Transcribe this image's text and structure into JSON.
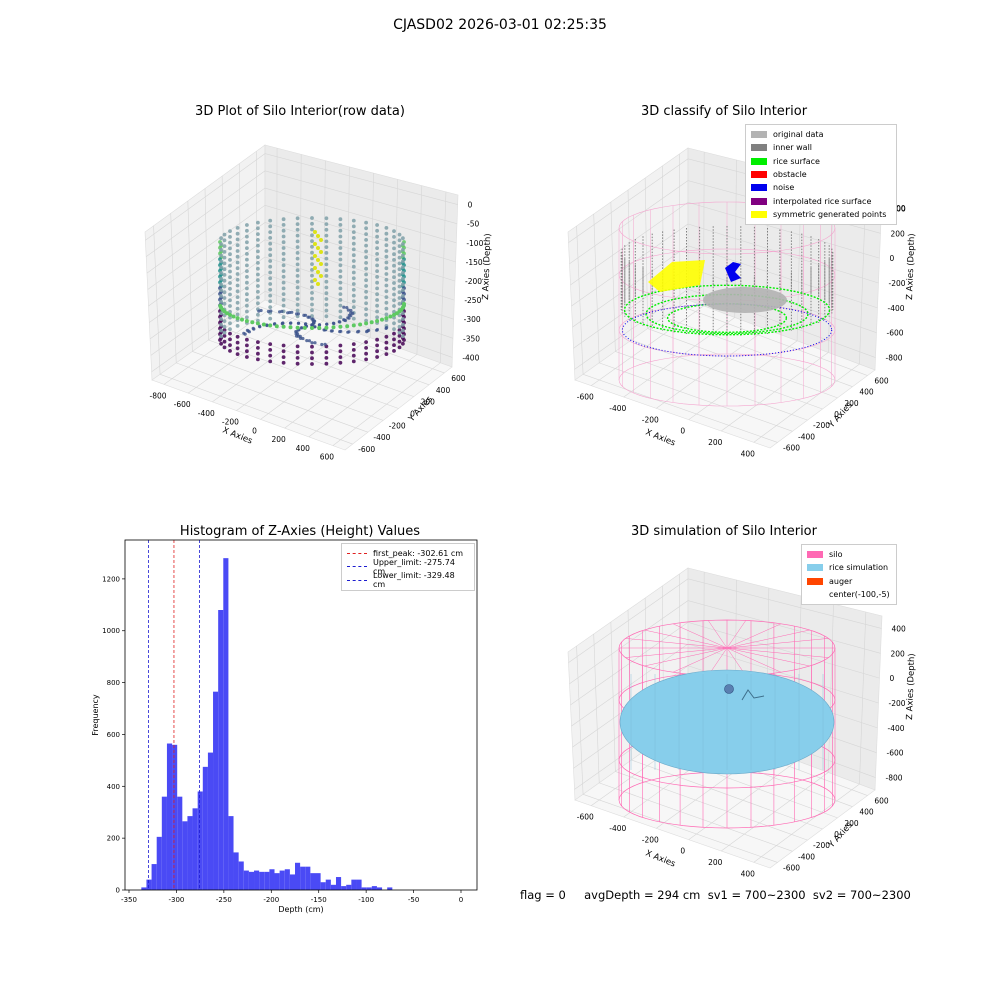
{
  "figure": {
    "suptitle": "CJASD02 2026-03-01 02:25:35",
    "status_text": "flag = 0     avgDepth = 294 cm  sv1 = 700~2300  sv2 = 700~2300"
  },
  "colors": {
    "hist_bar": "#4a4af5",
    "peak_line": "#e02020",
    "limit_line": "#1c1cd0",
    "silo": "#ff69b4",
    "rice_sim": "#87ceeb",
    "auger": "#ff4500",
    "original": "#b3b3b3",
    "inner_wall": "#808080",
    "rice_surface": "#00ee00",
    "obstacle": "#ff0000",
    "noise": "#0000ee",
    "interp_rice": "#800080",
    "symmetric": "#ffff00"
  },
  "chart_data": [
    {
      "type": "scatter",
      "projection": "3d",
      "title": "3D Plot of Silo Interior(row data)",
      "xlabel": "X Axies",
      "ylabel": "Y Axies",
      "zlabel": "Z Axies (Depth)",
      "x_ticks": [
        "-800",
        "-600",
        "-400",
        "-200",
        "0",
        "200",
        "400",
        "600"
      ],
      "y_ticks": [
        "-600",
        "-400",
        "-200",
        "0",
        "200",
        "400",
        "600"
      ],
      "z_ticks": [
        "0",
        "-50",
        "-100",
        "-150",
        "-200",
        "-250",
        "-300",
        "-350",
        "-400"
      ],
      "colormap": "viridis"
    },
    {
      "type": "scatter",
      "projection": "3d",
      "title": "3D classify of Silo Interior",
      "xlabel": "X Axies",
      "ylabel": "Y Axies",
      "zlabel": "Z Axies (Depth)",
      "x_ticks": [
        "-600",
        "-400",
        "-200",
        "0",
        "200",
        "400"
      ],
      "y_ticks": [
        "-600",
        "-400",
        "-200",
        "0",
        "200",
        "400",
        "600"
      ],
      "z_ticks": [
        "400",
        "200",
        "0",
        "-200",
        "-400",
        "-600",
        "-800"
      ],
      "z_tick_partial": "00",
      "legend": [
        {
          "label": "original data",
          "color": "#b3b3b3"
        },
        {
          "label": "inner wall",
          "color": "#808080"
        },
        {
          "label": "rice surface",
          "color": "#00ee00"
        },
        {
          "label": "obstacle",
          "color": "#ff0000"
        },
        {
          "label": "noise",
          "color": "#0000ee"
        },
        {
          "label": "interpolated rice surface",
          "color": "#800080"
        },
        {
          "label": "symmetric generated points",
          "color": "#ffff00"
        }
      ]
    },
    {
      "type": "bar",
      "title": "Histogram of Z-Axies (Height) Values",
      "xlabel": "Depth (cm)",
      "ylabel": "Frequency",
      "xlim": [
        -350,
        0
      ],
      "ylim": [
        0,
        1350
      ],
      "x_ticks": [
        -350,
        -300,
        -250,
        -200,
        -150,
        -100,
        -50,
        0
      ],
      "y_ticks": [
        0,
        200,
        400,
        600,
        800,
        1000,
        1200
      ],
      "bin_start": -337,
      "bin_width": 5.4,
      "values": [
        10,
        40,
        100,
        205,
        360,
        565,
        560,
        360,
        265,
        285,
        315,
        380,
        475,
        530,
        765,
        1080,
        1280,
        285,
        145,
        110,
        75,
        70,
        75,
        70,
        70,
        80,
        65,
        75,
        80,
        60,
        105,
        90,
        90,
        65,
        65,
        30,
        40,
        20,
        50,
        15,
        20,
        40,
        40,
        10,
        10,
        15,
        10,
        0,
        10
      ],
      "vlines": [
        {
          "label": "first_peak: -302.61 cm",
          "x": -302.61,
          "color": "#e02020"
        },
        {
          "label": "Upper_limit: -275.74 cm",
          "x": -275.74,
          "color": "#1c1cd0"
        },
        {
          "label": "Lower_limit: -329.48 cm",
          "x": -329.48,
          "color": "#1c1cd0"
        }
      ]
    },
    {
      "type": "scatter",
      "projection": "3d",
      "title": "3D simulation of Silo Interior",
      "xlabel": "X Axies",
      "ylabel": "Y Axies",
      "zlabel": "Z Axies (Depth)",
      "x_ticks": [
        "-600",
        "-400",
        "-200",
        "0",
        "200",
        "400"
      ],
      "y_ticks": [
        "-600",
        "-400",
        "-200",
        "0",
        "200",
        "400",
        "600"
      ],
      "z_ticks": [
        "400",
        "200",
        "0",
        "-200",
        "-400",
        "-600",
        "-800"
      ],
      "legend": [
        {
          "label": "silo",
          "color": "#ff69b4"
        },
        {
          "label": "rice simulation",
          "color": "#87ceeb"
        },
        {
          "label": "auger",
          "color": "#ff4500"
        },
        {
          "label": "center(-100,-5)",
          "color": ""
        }
      ]
    }
  ]
}
